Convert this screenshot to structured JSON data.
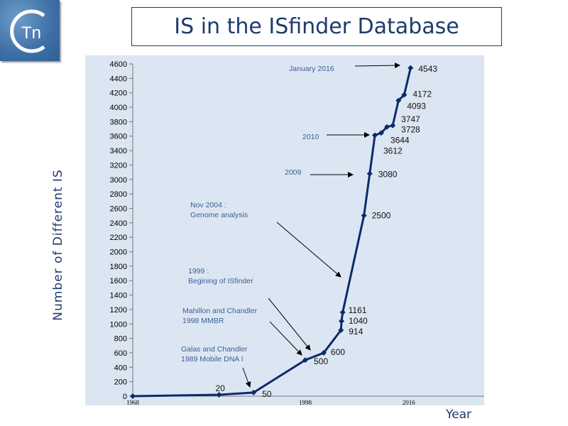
{
  "logo": {
    "text": "Tn"
  },
  "title": "IS in the ISfinder Database",
  "chart_data": {
    "type": "line",
    "title": "",
    "xlabel": "Year",
    "ylabel": "Number of Different IS",
    "ylim": [
      0,
      4600
    ],
    "xlim": [
      1968,
      2016.3
    ],
    "y_ticks": [
      0,
      200,
      400,
      600,
      800,
      1000,
      1200,
      1400,
      1600,
      1800,
      2000,
      2200,
      2400,
      2600,
      2800,
      3000,
      3200,
      3400,
      3600,
      3800,
      4000,
      4200,
      4400,
      4600
    ],
    "x_ticks": [
      "1968",
      "1998",
      "2016"
    ],
    "grid": false,
    "line_color": "#0d2a6b",
    "background_color": "#dce6f2",
    "points": [
      {
        "x": 1968,
        "y": 0,
        "label": ""
      },
      {
        "x": 1983,
        "y": 20,
        "label": "20"
      },
      {
        "x": 1989,
        "y": 50,
        "label": "50"
      },
      {
        "x": 1998,
        "y": 500,
        "label": "500"
      },
      {
        "x": 2001.2,
        "y": 600,
        "label": "600"
      },
      {
        "x": 2004.2,
        "y": 914,
        "label": "914"
      },
      {
        "x": 2004.3,
        "y": 1040,
        "label": "1040"
      },
      {
        "x": 2004.5,
        "y": 1161,
        "label": "1161"
      },
      {
        "x": 2008.2,
        "y": 2500,
        "label": "2500"
      },
      {
        "x": 2009.2,
        "y": 3080,
        "label": "3080"
      },
      {
        "x": 2010.1,
        "y": 3612,
        "label": "3612"
      },
      {
        "x": 2011.2,
        "y": 3644,
        "label": "3644"
      },
      {
        "x": 2012.2,
        "y": 3728,
        "label": "3728"
      },
      {
        "x": 2013.2,
        "y": 3747,
        "label": "3747"
      },
      {
        "x": 2014.2,
        "y": 4093,
        "label": "4093"
      },
      {
        "x": 2015.2,
        "y": 4172,
        "label": "4172"
      },
      {
        "x": 2016.3,
        "y": 4543,
        "label": "4543"
      }
    ],
    "annotations": [
      {
        "lines": [
          "January 2016"
        ]
      },
      {
        "lines": [
          "2010"
        ]
      },
      {
        "lines": [
          "2009"
        ]
      },
      {
        "lines": [
          "Nov 2004 :",
          "Genome analysis"
        ]
      },
      {
        "lines": [
          "1999 :",
          "Begining of  ISfinder"
        ]
      },
      {
        "lines": [
          "Mahillon and Chandler",
          "1998 MMBR"
        ]
      },
      {
        "lines": [
          "Galas and Chandler",
          "1989 Mobile DNA I"
        ]
      }
    ]
  }
}
